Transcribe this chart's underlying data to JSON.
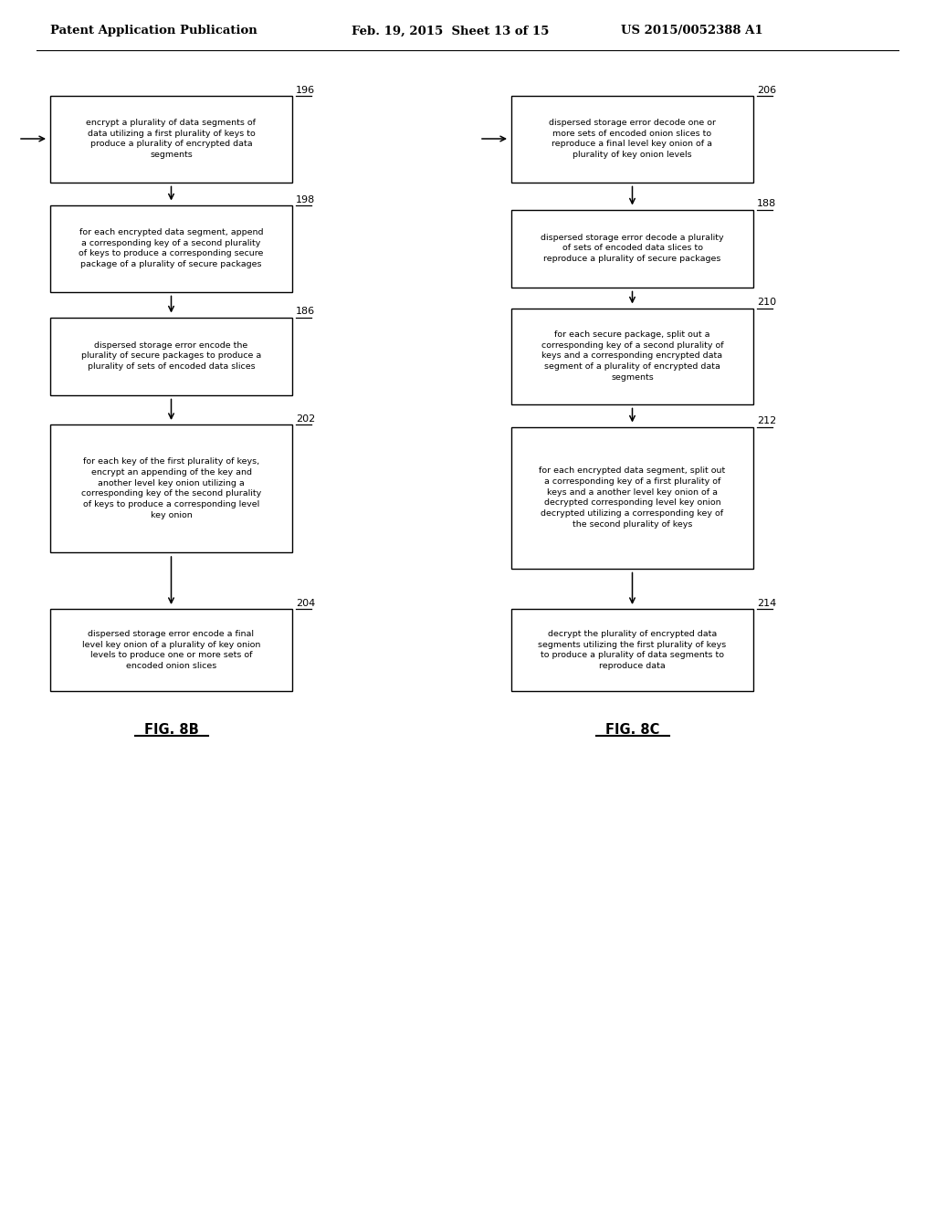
{
  "header_left": "Patent Application Publication",
  "header_mid": "Feb. 19, 2015  Sheet 13 of 15",
  "header_right": "US 2015/0052388 A1",
  "fig_b_label": "FIG. 8B",
  "fig_c_label": "FIG. 8C",
  "fig_b_boxes": [
    {
      "id": "196",
      "text": "encrypt a plurality of data segments of\ndata utilizing a first plurality of keys to\nproduce a plurality of encrypted data\nsegments"
    },
    {
      "id": "198",
      "text": "for each encrypted data segment, append\na corresponding key of a second plurality\nof keys to produce a corresponding secure\npackage of a plurality of secure packages"
    },
    {
      "id": "186",
      "text": "dispersed storage error encode the\nplurality of secure packages to produce a\nplurality of sets of encoded data slices"
    },
    {
      "id": "202",
      "text": "for each key of the first plurality of keys,\nencrypt an appending of the key and\nanother level key onion utilizing a\ncorresponding key of the second plurality\nof keys to produce a corresponding level\nkey onion"
    },
    {
      "id": "204",
      "text": "dispersed storage error encode a final\nlevel key onion of a plurality of key onion\nlevels to produce one or more sets of\nencoded onion slices"
    }
  ],
  "fig_c_boxes": [
    {
      "id": "206",
      "text": "dispersed storage error decode one or\nmore sets of encoded onion slices to\nreproduce a final level key onion of a\nplurality of key onion levels"
    },
    {
      "id": "188",
      "text": "dispersed storage error decode a plurality\nof sets of encoded data slices to\nreproduce a plurality of secure packages"
    },
    {
      "id": "210",
      "text": "for each secure package, split out a\ncorresponding key of a second plurality of\nkeys and a corresponding encrypted data\nsegment of a plurality of encrypted data\nsegments"
    },
    {
      "id": "212",
      "text": "for each encrypted data segment, split out\na corresponding key of a first plurality of\nkeys and a another level key onion of a\ndecrypted corresponding level key onion\ndecrypted utilizing a corresponding key of\nthe second plurality of keys"
    },
    {
      "id": "214",
      "text": "decrypt the plurality of encrypted data\nsegments utilizing the first plurality of keys\nto produce a plurality of data segments to\nreproduce data"
    }
  ],
  "bg_color": "#ffffff",
  "box_edge_color": "#000000",
  "text_color": "#000000",
  "arrow_color": "#000000"
}
